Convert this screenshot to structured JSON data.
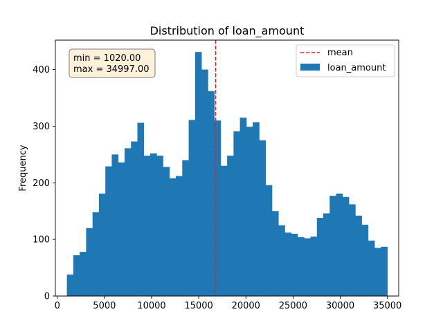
{
  "chart_data": {
    "type": "bar",
    "title": "Distribution of loan_amount",
    "xlabel": "",
    "ylabel": "Frequency",
    "xlim": [
      -200,
      36200
    ],
    "ylim": [
      0,
      452
    ],
    "xticks": [
      0,
      5000,
      10000,
      15000,
      20000,
      25000,
      30000,
      35000
    ],
    "yticks": [
      0,
      100,
      200,
      300,
      400
    ],
    "grid": false,
    "legend_position": "top-right",
    "bins": {
      "start": 1020.0,
      "end": 34997.0,
      "counts": [
        38,
        72,
        78,
        120,
        148,
        181,
        229,
        250,
        236,
        261,
        273,
        306,
        248,
        252,
        248,
        228,
        208,
        212,
        240,
        311,
        431,
        400,
        362,
        310,
        230,
        248,
        291,
        315,
        299,
        307,
        275,
        196,
        150,
        125,
        112,
        110,
        104,
        102,
        105,
        138,
        146,
        177,
        181,
        175,
        162,
        142,
        126,
        98,
        85,
        87
      ]
    },
    "series": [
      {
        "name": "loan_amount",
        "color": "#1f77b4"
      }
    ],
    "mean_line": {
      "name": "mean",
      "value": 16800,
      "color": "#d62728"
    },
    "stats_box": {
      "min_label": "min = 1020.00",
      "max_label": "max = 34997.00"
    }
  }
}
